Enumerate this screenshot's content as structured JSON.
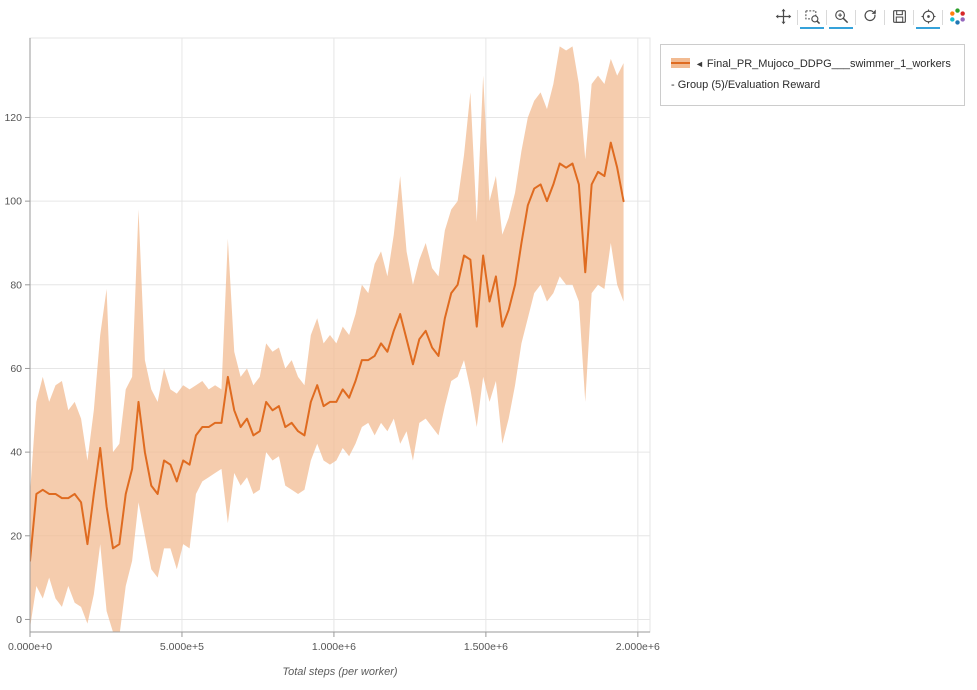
{
  "toolbar": {
    "active_color": "#35a2da",
    "tools": [
      {
        "name": "pan",
        "active": false
      },
      {
        "name": "box-zoom",
        "active": true
      },
      {
        "name": "wheel-zoom",
        "active": true
      },
      {
        "name": "reset",
        "active": false
      },
      {
        "name": "save",
        "active": false
      },
      {
        "name": "hover",
        "active": true
      },
      {
        "name": "bokeh-logo",
        "active": false
      }
    ]
  },
  "legend": {
    "marker": "◄",
    "label": "Final_PR_Mujoco_DDPG___swimmer_1_workers - Group (5)/Evaluation Reward",
    "swatch_fill": "#f2bb92",
    "swatch_line": "#df6b20"
  },
  "chart_data": {
    "type": "line",
    "title": "",
    "xlabel": "Total steps (per worker)",
    "ylabel": "",
    "grid": true,
    "legend_position": "top-right-outside",
    "xlim": [
      0,
      2040000
    ],
    "ylim": [
      -3,
      139
    ],
    "x_ticks": [
      {
        "value": 0,
        "label": "0.000e+0"
      },
      {
        "value": 500000,
        "label": "5.000e+5"
      },
      {
        "value": 1000000,
        "label": "1.000e+6"
      },
      {
        "value": 1500000,
        "label": "1.500e+6"
      },
      {
        "value": 2000000,
        "label": "2.000e+6"
      }
    ],
    "y_ticks": [
      {
        "value": 0,
        "label": "0"
      },
      {
        "value": 20,
        "label": "20"
      },
      {
        "value": 40,
        "label": "40"
      },
      {
        "value": 60,
        "label": "60"
      },
      {
        "value": 80,
        "label": "80"
      },
      {
        "value": 100,
        "label": "100"
      },
      {
        "value": 120,
        "label": "120"
      }
    ],
    "series": [
      {
        "name": "Final_PR_Mujoco_DDPG___swimmer_1_workers - Group (5)/Evaluation Reward",
        "color": "#df6b20",
        "band_color": "#f2bb92",
        "x": [
          0,
          21000,
          42000,
          63000,
          84000,
          105000,
          126000,
          147000,
          168000,
          189000,
          210000,
          231000,
          252000,
          273000,
          294000,
          315000,
          336000,
          357000,
          378000,
          399000,
          420000,
          441000,
          462000,
          483000,
          504000,
          525000,
          546000,
          567000,
          588000,
          609000,
          630000,
          651000,
          672000,
          693000,
          714000,
          735000,
          756000,
          777000,
          798000,
          819000,
          840000,
          861000,
          882000,
          903000,
          924000,
          945000,
          966000,
          987000,
          1008000,
          1029000,
          1050000,
          1071000,
          1092000,
          1113000,
          1134000,
          1155000,
          1176000,
          1197000,
          1218000,
          1239000,
          1260000,
          1281000,
          1302000,
          1323000,
          1344000,
          1365000,
          1386000,
          1407000,
          1428000,
          1449000,
          1470000,
          1491000,
          1512000,
          1533000,
          1554000,
          1575000,
          1596000,
          1617000,
          1638000,
          1659000,
          1680000,
          1701000,
          1722000,
          1743000,
          1764000,
          1785000,
          1806000,
          1827000,
          1848000,
          1869000,
          1890000,
          1911000,
          1932000,
          1953000
        ],
        "mean": [
          14,
          30,
          31,
          30,
          30,
          29,
          29,
          30,
          28,
          18,
          30,
          41,
          27,
          17,
          18,
          30,
          36,
          52,
          40,
          32,
          30,
          38,
          37,
          33,
          38,
          37,
          44,
          46,
          46,
          47,
          47,
          58,
          50,
          46,
          48,
          44,
          45,
          52,
          50,
          51,
          46,
          47,
          45,
          44,
          52,
          56,
          51,
          52,
          52,
          55,
          53,
          57,
          62,
          62,
          63,
          66,
          64,
          69,
          73,
          67,
          61,
          67,
          69,
          65,
          63,
          72,
          78,
          80,
          87,
          86,
          70,
          87,
          76,
          82,
          70,
          74,
          80,
          90,
          99,
          103,
          104,
          100,
          104,
          109,
          108,
          109,
          104,
          83,
          104,
          107,
          106,
          114,
          108,
          100
        ],
        "band_upper": [
          30,
          52,
          58,
          52,
          56,
          57,
          50,
          52,
          48,
          38,
          50,
          68,
          79,
          40,
          42,
          55,
          58,
          98,
          62,
          55,
          52,
          60,
          55,
          54,
          56,
          55,
          56,
          57,
          55,
          56,
          55,
          91,
          64,
          58,
          60,
          56,
          58,
          66,
          64,
          65,
          60,
          62,
          58,
          56,
          68,
          72,
          66,
          68,
          66,
          70,
          68,
          73,
          80,
          78,
          85,
          88,
          82,
          92,
          106,
          88,
          80,
          86,
          90,
          84,
          82,
          93,
          98,
          100,
          111,
          126,
          95,
          130,
          100,
          106,
          92,
          96,
          102,
          112,
          120,
          124,
          126,
          122,
          128,
          137,
          136,
          137,
          128,
          110,
          128,
          130,
          128,
          134,
          130,
          133
        ],
        "band_lower": [
          -2,
          8,
          5,
          10,
          5,
          3,
          8,
          4,
          3,
          -1,
          6,
          18,
          2,
          -3,
          -4,
          8,
          14,
          28,
          20,
          12,
          10,
          17,
          17,
          12,
          18,
          17,
          30,
          33,
          34,
          35,
          36,
          23,
          35,
          32,
          34,
          30,
          31,
          40,
          38,
          39,
          32,
          31,
          30,
          31,
          38,
          42,
          38,
          37,
          38,
          41,
          39,
          42,
          46,
          47,
          44,
          47,
          45,
          48,
          42,
          45,
          38,
          47,
          48,
          46,
          44,
          51,
          57,
          58,
          62,
          55,
          46,
          58,
          52,
          57,
          42,
          48,
          56,
          66,
          72,
          78,
          80,
          76,
          78,
          82,
          80,
          80,
          76,
          52,
          78,
          80,
          79,
          90,
          80,
          76
        ]
      }
    ]
  }
}
